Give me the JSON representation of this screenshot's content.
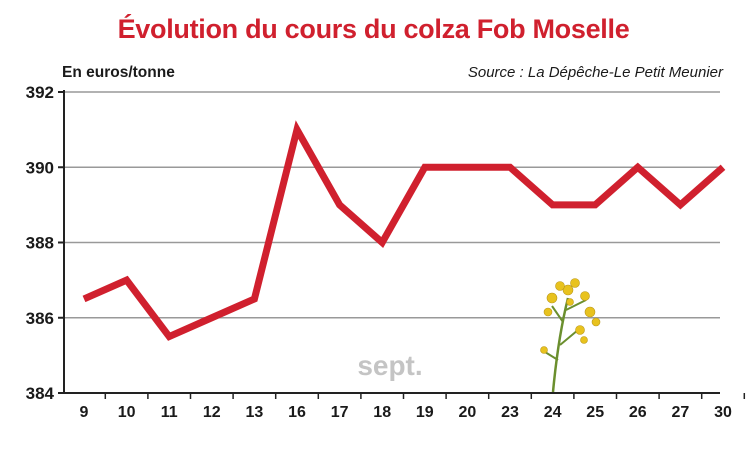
{
  "colors": {
    "line": "#d0202e",
    "title": "#d0202e",
    "grid": "#999999",
    "axis": "#222222",
    "month": "#c4c4c4"
  },
  "icons": {
    "decoration": "rapeseed-flower-icon"
  },
  "chart_data": {
    "type": "line",
    "title": "Évolution du cours du colza Fob Moselle",
    "unit_label": "En euros/tonne",
    "source": "Source : La Dépêche-Le Petit Meunier",
    "month_label": "sept.",
    "categories": [
      "9",
      "10",
      "11",
      "12",
      "13",
      "16",
      "17",
      "18",
      "19",
      "20",
      "23",
      "24",
      "25",
      "26",
      "27",
      "30"
    ],
    "series": [
      {
        "values": [
          386.5,
          387,
          385.5,
          386,
          386.5,
          391,
          389,
          388,
          390,
          390,
          390,
          389,
          389,
          390,
          389,
          390
        ]
      }
    ],
    "ylim": [
      384,
      392
    ],
    "yticks": [
      384,
      386,
      388,
      390,
      392
    ],
    "grid": true
  }
}
